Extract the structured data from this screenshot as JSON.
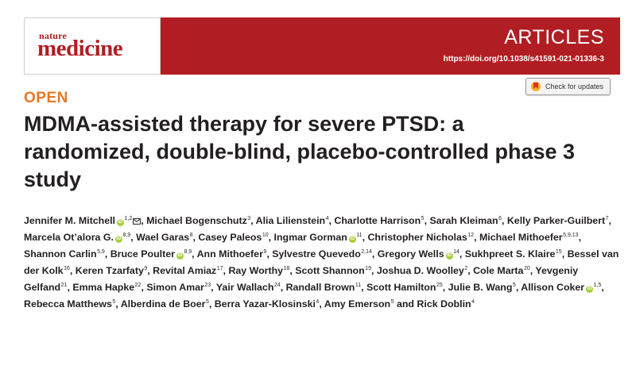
{
  "journal": {
    "logo_top": "nature",
    "logo_main": "medicine",
    "section": "ARTICLES",
    "doi": "https://doi.org/10.1038/s41591-021-01336-3"
  },
  "check_updates": {
    "label": "Check for updates",
    "icon": "crossmark-icon"
  },
  "access": "OPEN",
  "article_title": "MDMA-assisted therapy for severe PTSD: a randomized, double-blind, placebo-controlled phase 3 study",
  "orcid_glyph": "iD",
  "authors": [
    {
      "name": "Jennifer M. Mitchell",
      "orcid": true,
      "aff": "1,2",
      "mail": true
    },
    {
      "name": "Michael Bogenschutz",
      "aff": "3"
    },
    {
      "name": "Alia Lilienstein",
      "aff": "4"
    },
    {
      "name": "Charlotte Harrison",
      "aff": "5"
    },
    {
      "name": "Sarah Kleiman",
      "aff": "6"
    },
    {
      "name": "Kelly Parker-Guilbert",
      "aff": "7"
    },
    {
      "name": "Marcela Ot’alora G.",
      "orcid": true,
      "aff": "8,9"
    },
    {
      "name": "Wael Garas",
      "aff": "8"
    },
    {
      "name": "Casey Paleos",
      "aff": "10"
    },
    {
      "name": "Ingmar Gorman",
      "orcid": true,
      "aff": "11"
    },
    {
      "name": "Christopher Nicholas",
      "aff": "12"
    },
    {
      "name": "Michael Mithoefer",
      "aff": "5,9,13"
    },
    {
      "name": "Shannon Carlin",
      "aff": "5,9"
    },
    {
      "name": "Bruce Poulter",
      "orcid": true,
      "aff": "8,9"
    },
    {
      "name": "Ann Mithoefer",
      "aff": "9"
    },
    {
      "name": "Sylvestre Quevedo",
      "aff": "2,14"
    },
    {
      "name": "Gregory Wells",
      "orcid": true,
      "aff": "14"
    },
    {
      "name": "Sukhpreet S. Klaire",
      "aff": "15"
    },
    {
      "name": "Bessel van der Kolk",
      "aff": "16"
    },
    {
      "name": "Keren Tzarfaty",
      "aff": "9"
    },
    {
      "name": "Revital Amiaz",
      "aff": "17"
    },
    {
      "name": "Ray Worthy",
      "aff": "18"
    },
    {
      "name": "Scott Shannon",
      "aff": "19"
    },
    {
      "name": "Joshua D. Woolley",
      "aff": "2"
    },
    {
      "name": "Cole Marta",
      "aff": "20"
    },
    {
      "name": "Yevgeniy Gelfand",
      "aff": "21"
    },
    {
      "name": "Emma Hapke",
      "aff": "22"
    },
    {
      "name": "Simon Amar",
      "aff": "23"
    },
    {
      "name": "Yair Wallach",
      "aff": "24"
    },
    {
      "name": "Randall Brown",
      "aff": "11"
    },
    {
      "name": "Scott Hamilton",
      "aff": "25"
    },
    {
      "name": "Julie B. Wang",
      "aff": "5"
    },
    {
      "name": "Allison Coker",
      "orcid": true,
      "aff": "1,5"
    },
    {
      "name": "Rebecca Matthews",
      "aff": "5"
    },
    {
      "name": "Alberdina de Boer",
      "aff": "5"
    },
    {
      "name": "Berra Yazar-Klosinski",
      "aff": "4"
    },
    {
      "name": "Amy Emerson",
      "aff": "5"
    },
    {
      "name": "Rick Doblin",
      "aff": "4"
    }
  ],
  "author_sep": ", ",
  "author_final_sep": " and ",
  "colors": {
    "brand_red": "#b01e23",
    "open_orange": "#e87722",
    "orcid_green": "#a6ce39",
    "text": "#231f20"
  }
}
